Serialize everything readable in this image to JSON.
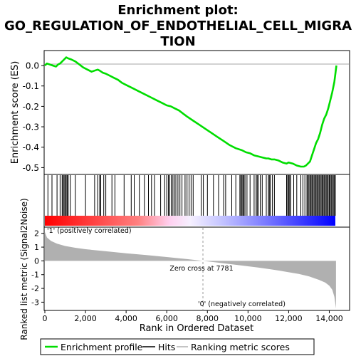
{
  "title_lines": [
    "Enrichment plot:",
    "GO_REGULATION_OF_ENDOTHELIAL_CELL_MIGRA",
    "TION"
  ],
  "colors": {
    "enrichment": "#00dd00",
    "hits": "#000000",
    "metric": "#b0b0b0",
    "pos_label": "#dd0000",
    "neg_label": "#0000dd"
  },
  "chart_data": [
    {
      "type": "line",
      "panel": "enrichment",
      "ylabel": "Enrichment score (ES)",
      "ylim": [
        -0.53,
        0.07
      ],
      "xlim": [
        0,
        15000
      ],
      "yticks": [
        "0.0",
        "-0.1",
        "-0.2",
        "-0.3",
        "-0.4",
        "-0.5"
      ],
      "ytick_values": [
        0.0,
        -0.1,
        -0.2,
        -0.3,
        -0.4,
        -0.5
      ],
      "grid": false,
      "series": [
        {
          "name": "Enrichment profile",
          "x": [
            0,
            100,
            250,
            400,
            550,
            650,
            750,
            850,
            950,
            1050,
            1150,
            1300,
            1500,
            1700,
            1900,
            2100,
            2300,
            2450,
            2600,
            2700,
            2850,
            3000,
            3200,
            3400,
            3600,
            3800,
            4000,
            4300,
            4600,
            4900,
            5200,
            5500,
            5800,
            6000,
            6200,
            6400,
            6600,
            6800,
            7000,
            7300,
            7600,
            7900,
            8200,
            8500,
            8800,
            9100,
            9400,
            9700,
            9900,
            10100,
            10300,
            10500,
            10700,
            10900,
            11000,
            11150,
            11300,
            11500,
            11700,
            11900,
            12000,
            12200,
            12400,
            12600,
            12750,
            12850,
            12950,
            13050,
            13150,
            13250,
            13350,
            13450,
            13550,
            13650,
            13750,
            13850,
            13950,
            14050,
            14150,
            14250,
            14350
          ],
          "values": [
            0.0,
            0.01,
            0.005,
            0.0,
            -0.005,
            0.005,
            0.01,
            0.02,
            0.03,
            0.04,
            0.035,
            0.03,
            0.02,
            0.005,
            -0.01,
            -0.02,
            -0.03,
            -0.025,
            -0.02,
            -0.025,
            -0.035,
            -0.04,
            -0.05,
            -0.06,
            -0.07,
            -0.085,
            -0.095,
            -0.11,
            -0.125,
            -0.14,
            -0.155,
            -0.17,
            -0.185,
            -0.195,
            -0.2,
            -0.21,
            -0.22,
            -0.235,
            -0.25,
            -0.27,
            -0.29,
            -0.31,
            -0.33,
            -0.35,
            -0.37,
            -0.39,
            -0.405,
            -0.415,
            -0.425,
            -0.43,
            -0.44,
            -0.445,
            -0.45,
            -0.455,
            -0.455,
            -0.46,
            -0.46,
            -0.465,
            -0.475,
            -0.48,
            -0.475,
            -0.48,
            -0.49,
            -0.495,
            -0.495,
            -0.49,
            -0.48,
            -0.47,
            -0.44,
            -0.41,
            -0.38,
            -0.36,
            -0.33,
            -0.29,
            -0.26,
            -0.24,
            -0.21,
            -0.17,
            -0.13,
            -0.08,
            0.0
          ]
        }
      ]
    },
    {
      "type": "scatter",
      "panel": "hits",
      "series": [
        {
          "name": "Hits",
          "values": [
            150,
            350,
            600,
            750,
            850,
            900,
            950,
            1000,
            1050,
            1100,
            1150,
            1250,
            1500,
            2000,
            2450,
            2600,
            2700,
            2750,
            2900,
            3000,
            3300,
            3450,
            3900,
            4250,
            4400,
            4650,
            4900,
            5100,
            5250,
            5400,
            5700,
            5900,
            6000,
            6080,
            6150,
            6220,
            6300,
            6380,
            6450,
            6550,
            6650,
            6750,
            6900,
            7000,
            7100,
            7200,
            7300,
            7700,
            7800,
            8000,
            8300,
            8550,
            8800,
            8900,
            9200,
            9400,
            9600,
            9650,
            9700,
            9750,
            9800,
            9850,
            9950,
            10100,
            10300,
            10400,
            10450,
            10500,
            10600,
            10700,
            10900,
            11000,
            11050,
            11100,
            11200,
            11300,
            11900,
            11950,
            12000,
            12050,
            12100,
            12250,
            12400,
            12600,
            12700,
            12800,
            12900,
            12950,
            13000,
            13050,
            13100,
            13150,
            13200,
            13250,
            13300,
            13350,
            13400,
            13450,
            13500,
            13550,
            13600,
            13650,
            13700,
            13750,
            13800,
            13850,
            13900,
            13950,
            14000,
            14050,
            14100,
            14150,
            14200,
            14250,
            14300
          ]
        }
      ]
    },
    {
      "type": "area",
      "panel": "ranking",
      "ylabel": "Ranked list metric (Signal2Noise)",
      "xlabel": "Rank in Ordered Dataset",
      "xlim": [
        0,
        15000
      ],
      "ylim": [
        -3.6,
        2.4
      ],
      "xtick_values": [
        0,
        2000,
        4000,
        6000,
        8000,
        10000,
        12000,
        14000
      ],
      "xticks": [
        "0",
        "2,000",
        "4,000",
        "6,000",
        "8,000",
        "10,000",
        "12,000",
        "14,000"
      ],
      "yticks": [
        "2",
        "1",
        "0",
        "-1",
        "-2",
        "-3"
      ],
      "ytick_values": [
        2,
        1,
        0,
        -1,
        -2,
        -3
      ],
      "zero_cross": 7781,
      "annotation": "Zero cross at 7781",
      "pos_label": "'1' (positively correlated)",
      "neg_label": "'0' (negatively correlated)",
      "series": [
        {
          "name": "Ranking metric scores",
          "x": [
            0,
            100,
            300,
            600,
            1000,
            1500,
            2000,
            3000,
            4000,
            5000,
            6000,
            7000,
            7781,
            8500,
            9500,
            10500,
            11500,
            12500,
            13000,
            13500,
            13800,
            14000,
            14150,
            14250,
            14330
          ],
          "values": [
            2.1,
            1.7,
            1.45,
            1.25,
            1.08,
            0.95,
            0.85,
            0.7,
            0.55,
            0.42,
            0.28,
            0.13,
            0.0,
            -0.12,
            -0.3,
            -0.48,
            -0.7,
            -0.95,
            -1.12,
            -1.38,
            -1.58,
            -1.8,
            -2.1,
            -2.6,
            -3.45
          ]
        }
      ]
    }
  ],
  "legend": {
    "items": [
      {
        "label": "Enrichment profile",
        "color": "#00dd00"
      },
      {
        "label": "Hits",
        "color": "#000000"
      },
      {
        "label": "Ranking metric scores",
        "color": "#b0b0b0"
      }
    ]
  }
}
